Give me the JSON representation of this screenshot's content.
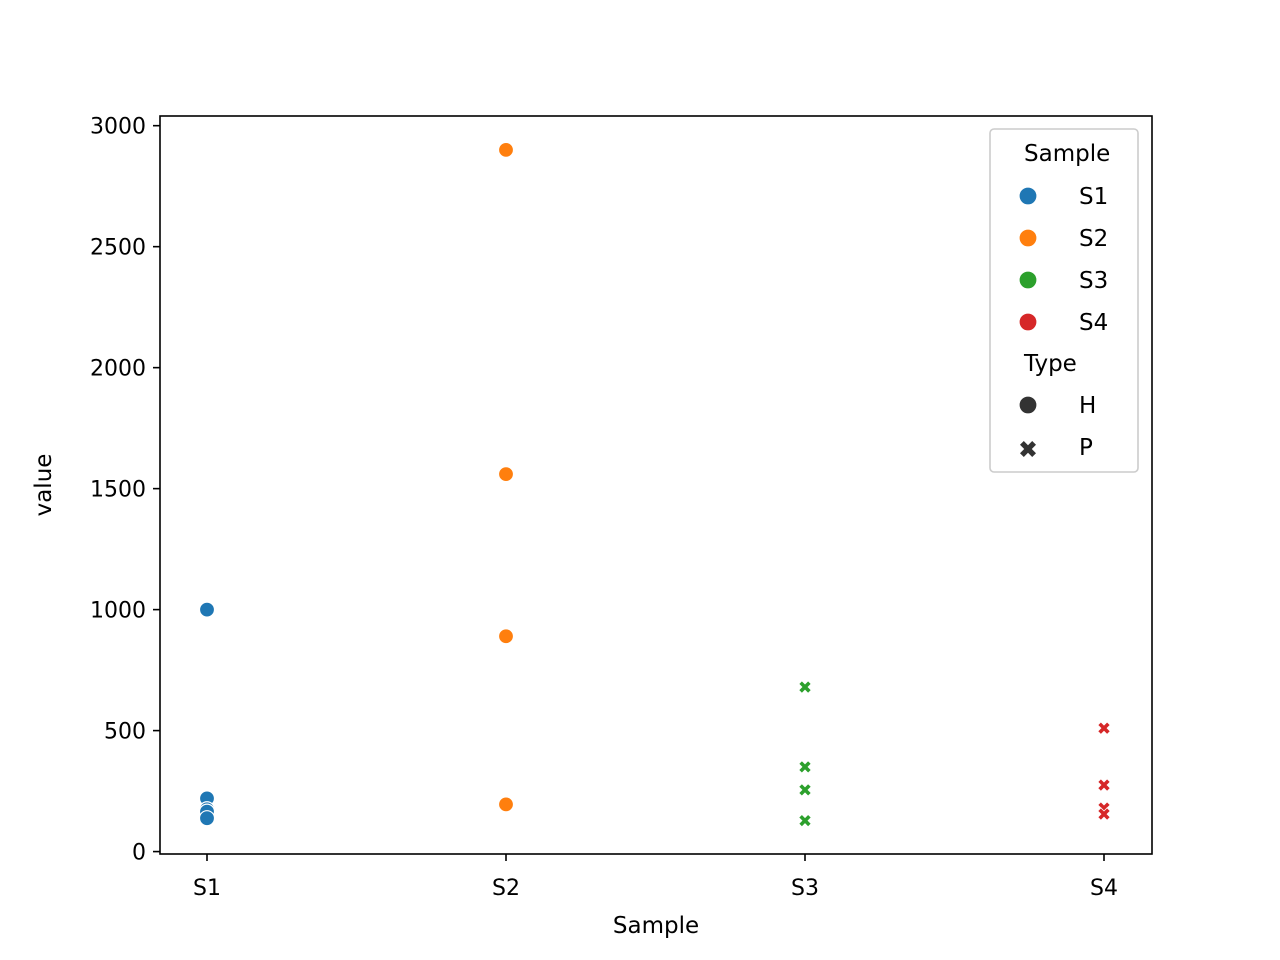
{
  "chart_data": {
    "type": "scatter",
    "title": "",
    "xlabel": "Sample",
    "ylabel": "value",
    "categories": [
      "S1",
      "S2",
      "S3",
      "S4"
    ],
    "ylim": [
      -10,
      3040
    ],
    "yticks": [
      0,
      500,
      1000,
      1500,
      2000,
      2500,
      3000
    ],
    "grid": false,
    "legend_position": "top-right",
    "series": [
      {
        "name": "S1",
        "color": "#1f77b4",
        "marker": "H",
        "points": [
          {
            "x": "S1",
            "y": 1000
          },
          {
            "x": "S1",
            "y": 220
          },
          {
            "x": "S1",
            "y": 175
          },
          {
            "x": "S1",
            "y": 165
          },
          {
            "x": "S1",
            "y": 138
          }
        ]
      },
      {
        "name": "S2",
        "color": "#ff7f0e",
        "marker": "H",
        "points": [
          {
            "x": "S2",
            "y": 2900
          },
          {
            "x": "S2",
            "y": 1560
          },
          {
            "x": "S2",
            "y": 890
          },
          {
            "x": "S2",
            "y": 195
          }
        ]
      },
      {
        "name": "S3",
        "color": "#2ca02c",
        "marker": "P",
        "points": [
          {
            "x": "S3",
            "y": 680
          },
          {
            "x": "S3",
            "y": 350
          },
          {
            "x": "S3",
            "y": 255
          },
          {
            "x": "S3",
            "y": 128
          }
        ]
      },
      {
        "name": "S4",
        "color": "#d62728",
        "marker": "P",
        "points": [
          {
            "x": "S4",
            "y": 510
          },
          {
            "x": "S4",
            "y": 275
          },
          {
            "x": "S4",
            "y": 180
          },
          {
            "x": "S4",
            "y": 155
          }
        ]
      }
    ],
    "legend": {
      "hue_title": "Sample",
      "hue_entries": [
        {
          "label": "S1",
          "color": "#1f77b4"
        },
        {
          "label": "S2",
          "color": "#ff7f0e"
        },
        {
          "label": "S3",
          "color": "#2ca02c"
        },
        {
          "label": "S4",
          "color": "#d62728"
        }
      ],
      "style_title": "Type",
      "style_entries": [
        {
          "label": "H",
          "marker": "circle",
          "color": "#333333"
        },
        {
          "label": "P",
          "marker": "x",
          "color": "#333333"
        }
      ]
    }
  }
}
